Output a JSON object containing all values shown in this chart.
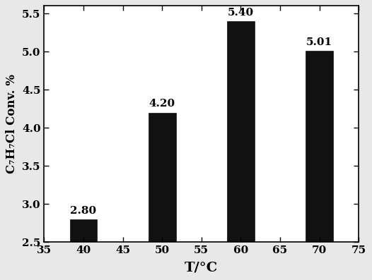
{
  "x_positions": [
    40,
    50,
    60,
    70
  ],
  "bar_values": [
    2.8,
    4.2,
    5.4,
    5.01
  ],
  "bar_labels": [
    "2.80",
    "4.20",
    "5.40",
    "5.01"
  ],
  "bar_color": "#111111",
  "bar_width": 3.5,
  "xlabel": "T/°C",
  "ylabel": "C₇H₇Cl Conv. %",
  "xlim": [
    35,
    75
  ],
  "ylim": [
    2.5,
    5.6
  ],
  "xticks": [
    35,
    40,
    45,
    50,
    55,
    60,
    65,
    70,
    75
  ],
  "yticks": [
    2.5,
    3.0,
    3.5,
    4.0,
    4.5,
    5.0,
    5.5
  ],
  "xlabel_fontsize": 14,
  "ylabel_fontsize": 12,
  "tick_fontsize": 11,
  "label_fontsize": 11,
  "background_color": "#ffffff",
  "fig_background_color": "#e8e8e8"
}
